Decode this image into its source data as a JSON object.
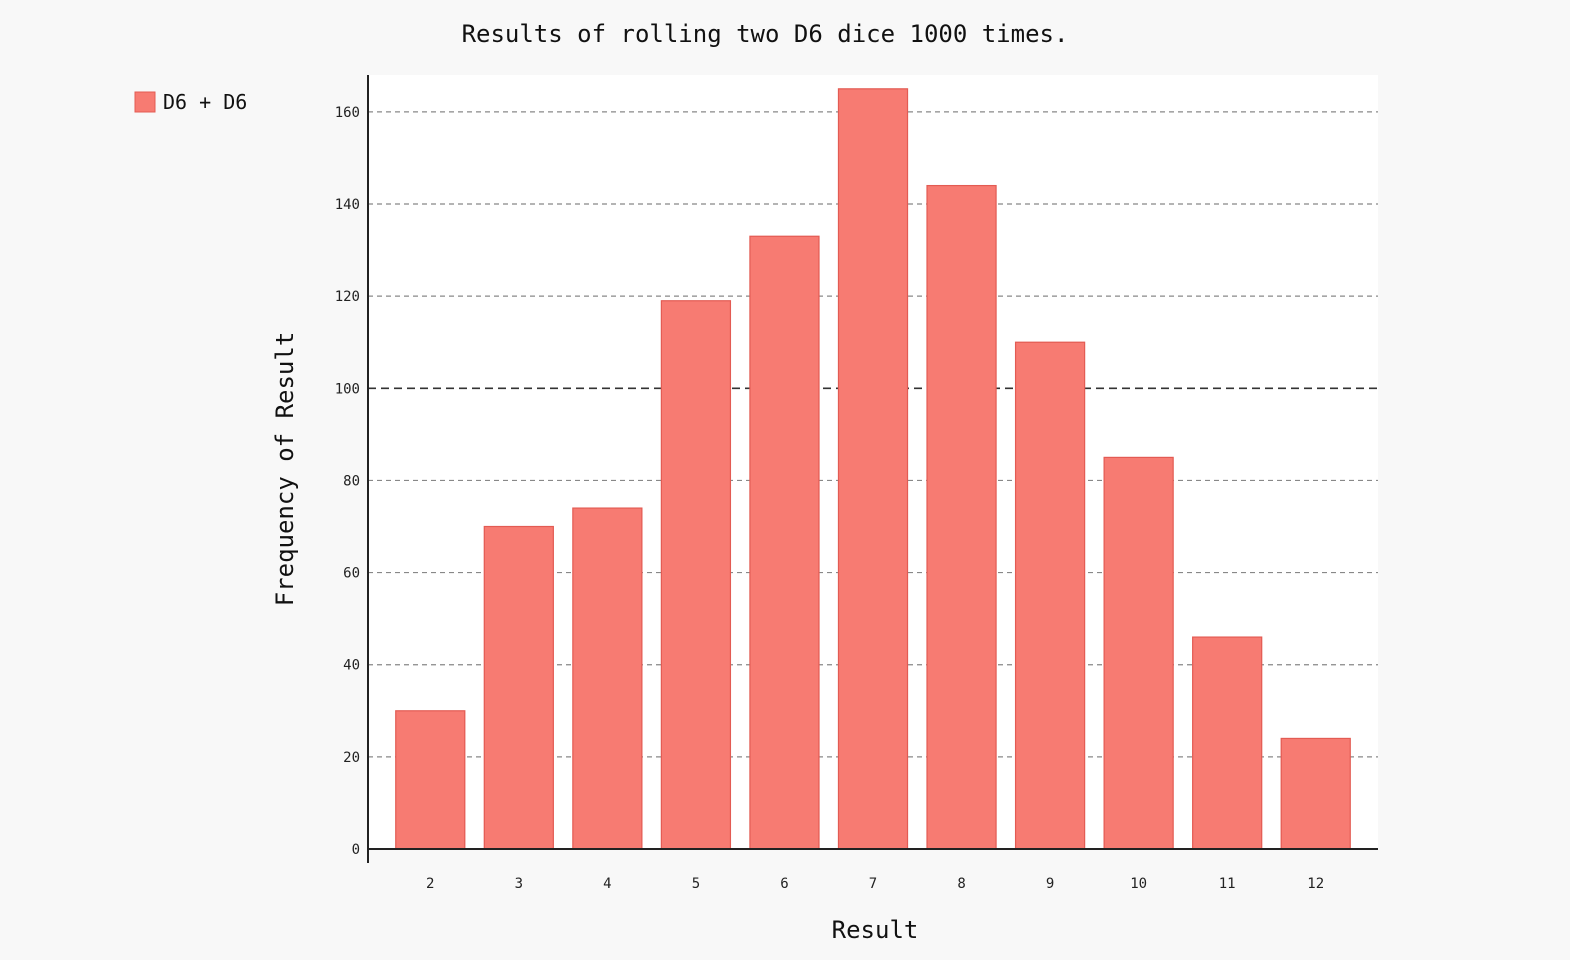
{
  "chart_data": {
    "type": "bar",
    "title": "Results of rolling two D6 dice 1000 times.",
    "xlabel": "Result",
    "ylabel": "Frequency of Result",
    "categories": [
      "2",
      "3",
      "4",
      "5",
      "6",
      "7",
      "8",
      "9",
      "10",
      "11",
      "12"
    ],
    "series": [
      {
        "name": "D6 + D6",
        "values": [
          30,
          70,
          74,
          119,
          133,
          165,
          144,
          110,
          85,
          46,
          24
        ]
      }
    ],
    "ylim": [
      0,
      168
    ],
    "yticks": [
      0,
      20,
      40,
      60,
      80,
      100,
      120,
      140,
      160
    ],
    "grid": true,
    "legend_position": "top-left"
  },
  "colors": {
    "bar_fill": "#f77b72",
    "bar_stroke": "#e35b53",
    "plot_background": "#ffffff",
    "page_background": "#f8f8f8",
    "grid": "#888888",
    "major_grid": "#333333",
    "axis": "#222222"
  }
}
